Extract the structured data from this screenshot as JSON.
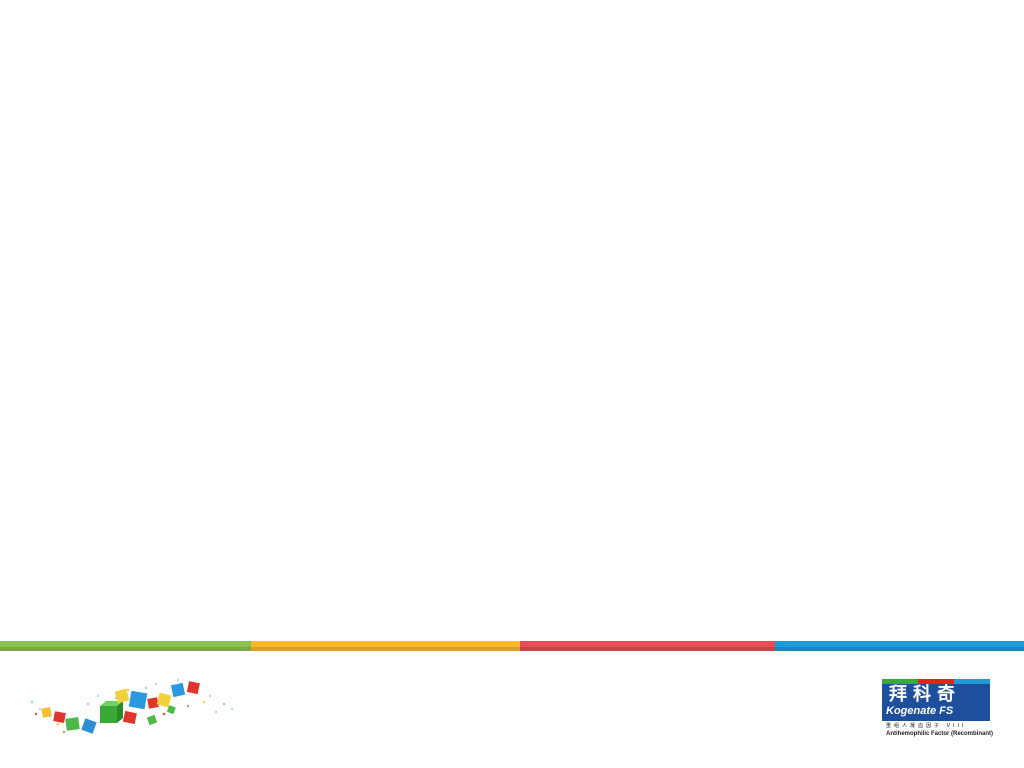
{
  "stripes": [
    {
      "color": "#8cc152"
    },
    {
      "color": "#fbb829"
    },
    {
      "color": "#e84c55"
    },
    {
      "color": "#1e9ad6"
    }
  ],
  "decoration": {
    "icon": "colored-cubes-icon"
  },
  "logo": {
    "icon": "kogenate-fs-logo",
    "chinese_name": "拜科奇",
    "brand_name": "Kogenate FS",
    "chinese_subtitle": "重组人凝血因子 VIII",
    "english_subtitle": "Antihemophilic Factor (Recombinant)",
    "colors": {
      "box": "#1d4f9c",
      "tab_green": "#3aa935",
      "tab_red": "#e2231a",
      "tab_blue": "#1e9ad6"
    }
  }
}
